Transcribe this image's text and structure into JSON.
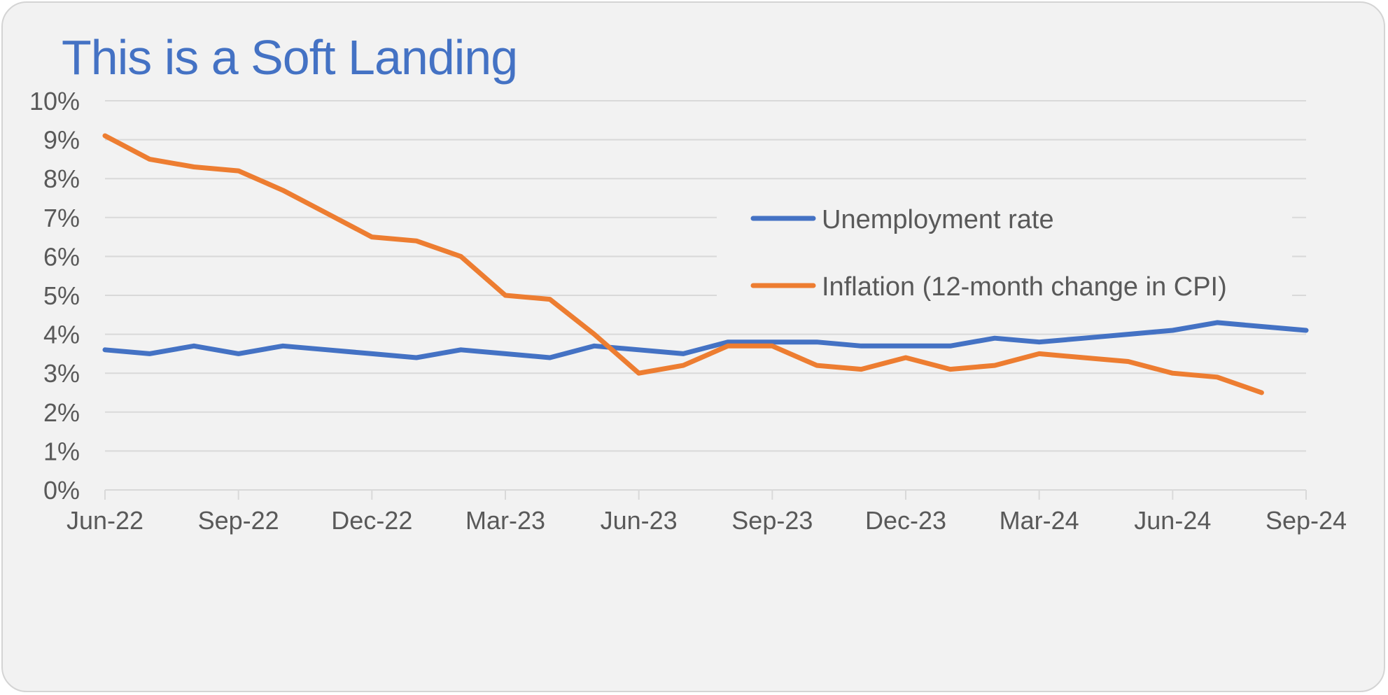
{
  "title": "This is a Soft Landing",
  "colors": {
    "title": "#4472c4",
    "unemployment": "#4472c4",
    "inflation": "#ed7d31",
    "grid": "#d9d9d9",
    "axis": "#d9d9d9",
    "text": "#595959"
  },
  "chart_data": {
    "type": "line",
    "title": "This is a Soft Landing",
    "x": [
      "Jun-22",
      "Jul-22",
      "Aug-22",
      "Sep-22",
      "Oct-22",
      "Nov-22",
      "Dec-22",
      "Jan-23",
      "Feb-23",
      "Mar-23",
      "Apr-23",
      "May-23",
      "Jun-23",
      "Jul-23",
      "Aug-23",
      "Sep-23",
      "Oct-23",
      "Nov-23",
      "Dec-23",
      "Jan-24",
      "Feb-24",
      "Mar-24",
      "Apr-24",
      "May-24",
      "Jun-24",
      "Jul-24",
      "Aug-24",
      "Sep-24"
    ],
    "x_tick_labels": [
      "Jun-22",
      "Sep-22",
      "Dec-22",
      "Mar-23",
      "Jun-23",
      "Sep-23",
      "Dec-23",
      "Mar-24",
      "Jun-24",
      "Sep-24"
    ],
    "y_tick_labels": [
      "0%",
      "1%",
      "2%",
      "3%",
      "4%",
      "5%",
      "6%",
      "7%",
      "8%",
      "9%",
      "10%"
    ],
    "ylim": [
      0,
      10
    ],
    "y_unit": "%",
    "grid": true,
    "legend_position": "top-right",
    "series": [
      {
        "name": "Unemployment rate",
        "color": "#4472c4",
        "values": [
          3.6,
          3.5,
          3.7,
          3.5,
          3.7,
          3.6,
          3.5,
          3.4,
          3.6,
          3.5,
          3.4,
          3.7,
          3.6,
          3.5,
          3.8,
          3.8,
          3.8,
          3.7,
          3.7,
          3.7,
          3.9,
          3.8,
          3.9,
          4.0,
          4.1,
          4.3,
          4.2,
          4.1
        ]
      },
      {
        "name": "Inflation (12-month change in CPI)",
        "color": "#ed7d31",
        "values": [
          9.1,
          8.5,
          8.3,
          8.2,
          7.7,
          7.1,
          6.5,
          6.4,
          6.0,
          5.0,
          4.9,
          4.0,
          3.0,
          3.2,
          3.7,
          3.7,
          3.2,
          3.1,
          3.4,
          3.1,
          3.2,
          3.5,
          3.4,
          3.3,
          3.0,
          2.9,
          2.5,
          null
        ]
      }
    ]
  }
}
